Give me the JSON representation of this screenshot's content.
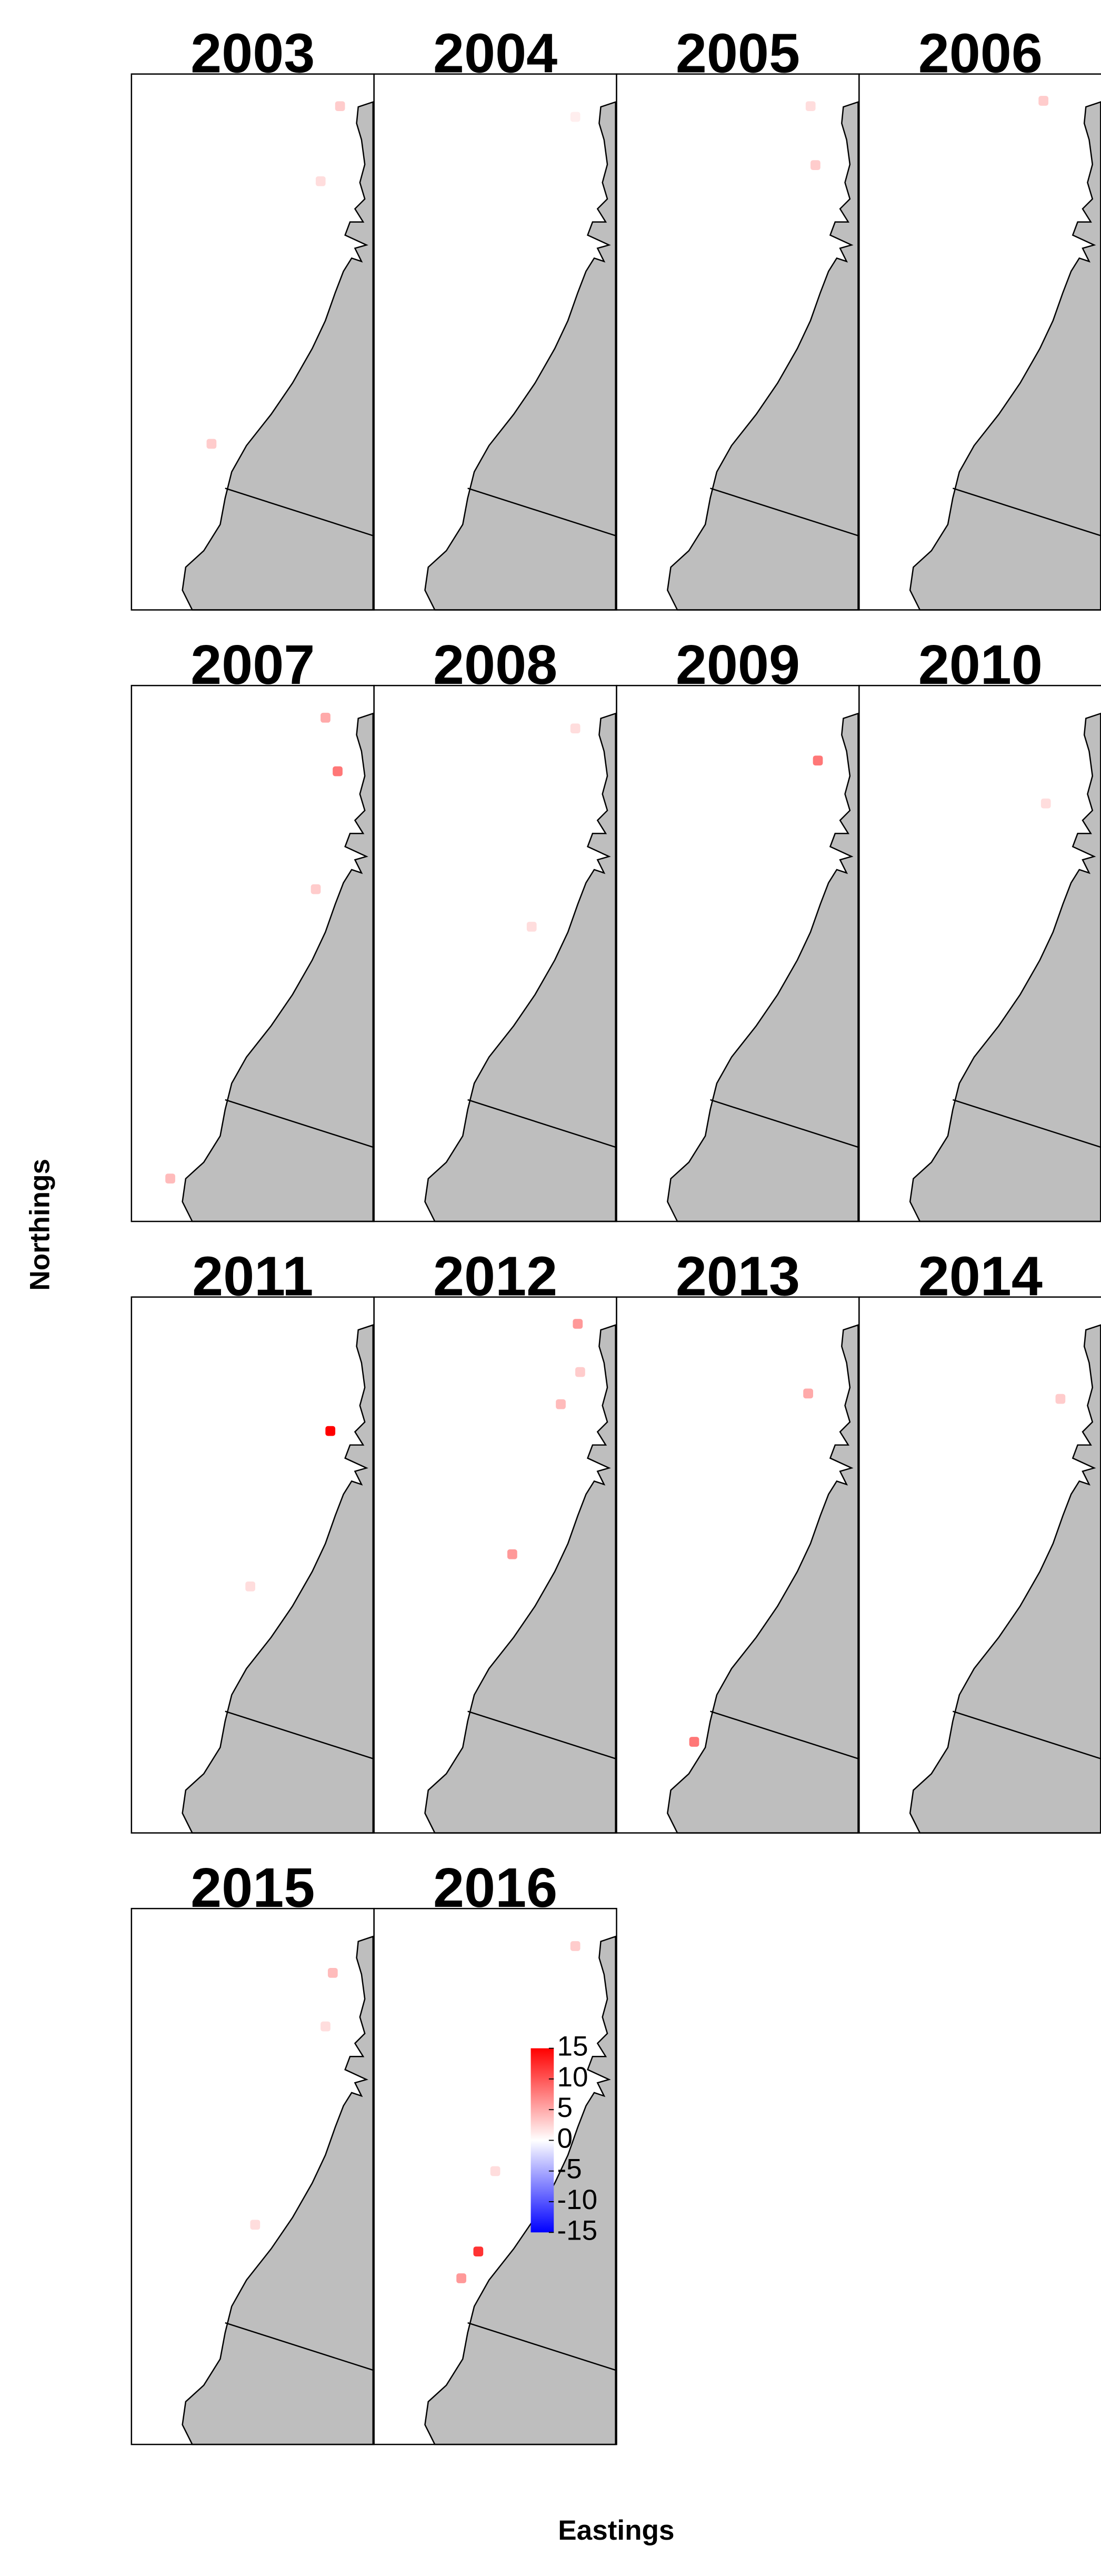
{
  "chart_data": {
    "type": "map",
    "xlabel": "Eastings",
    "ylabel": "Northings",
    "land_color": "#bebebe",
    "colorbar": {
      "lim": [
        -15,
        15
      ],
      "ticks": [
        15,
        10,
        5,
        0,
        -5,
        -10,
        -15
      ],
      "colors": [
        "#0000ff",
        "#ffffff",
        "#ff0000"
      ]
    },
    "panels": [
      {
        "title": "2003",
        "x": [
          0.86,
          0.78,
          0.33
        ],
        "y": [
          0.06,
          0.2,
          0.69
        ],
        "values": [
          3,
          2,
          3
        ]
      },
      {
        "title": "2004",
        "x": [
          0.83
        ],
        "y": [
          0.08
        ],
        "values": [
          1
        ]
      },
      {
        "title": "2005",
        "x": [
          0.8,
          0.82
        ],
        "y": [
          0.06,
          0.17
        ],
        "values": [
          2,
          3
        ]
      },
      {
        "title": "2006",
        "x": [
          0.76
        ],
        "y": [
          0.05
        ],
        "values": [
          3
        ]
      },
      {
        "title": "2007",
        "x": [
          0.8,
          0.85,
          0.76,
          0.16
        ],
        "y": [
          0.06,
          0.16,
          0.38,
          0.92
        ],
        "values": [
          5,
          8,
          3,
          4
        ]
      },
      {
        "title": "2008",
        "x": [
          0.83,
          0.65
        ],
        "y": [
          0.08,
          0.45
        ],
        "values": [
          2,
          2
        ]
      },
      {
        "title": "2009",
        "x": [
          0.83
        ],
        "y": [
          0.14
        ],
        "values": [
          8
        ]
      },
      {
        "title": "2010",
        "x": [
          0.77
        ],
        "y": [
          0.22
        ],
        "values": [
          2
        ]
      },
      {
        "title": "2011",
        "x": [
          0.82,
          0.49
        ],
        "y": [
          0.25,
          0.54
        ],
        "values": [
          15,
          2
        ]
      },
      {
        "title": "2012",
        "x": [
          0.84,
          0.85,
          0.77,
          0.57
        ],
        "y": [
          0.05,
          0.14,
          0.2,
          0.48
        ],
        "values": [
          6,
          3,
          4,
          6
        ]
      },
      {
        "title": "2013",
        "x": [
          0.79,
          0.32
        ],
        "y": [
          0.18,
          0.83
        ],
        "values": [
          5,
          8
        ]
      },
      {
        "title": "2014",
        "x": [
          0.83
        ],
        "y": [
          0.19
        ],
        "values": [
          3
        ]
      },
      {
        "title": "2015",
        "x": [
          0.83,
          0.8,
          0.51
        ],
        "y": [
          0.12,
          0.22,
          0.59
        ],
        "values": [
          4,
          2,
          2
        ]
      },
      {
        "title": "2016",
        "x": [
          0.83,
          0.43,
          0.36,
          0.5
        ],
        "y": [
          0.07,
          0.64,
          0.69,
          0.49
        ],
        "values": [
          3,
          12,
          6,
          2
        ]
      }
    ]
  }
}
